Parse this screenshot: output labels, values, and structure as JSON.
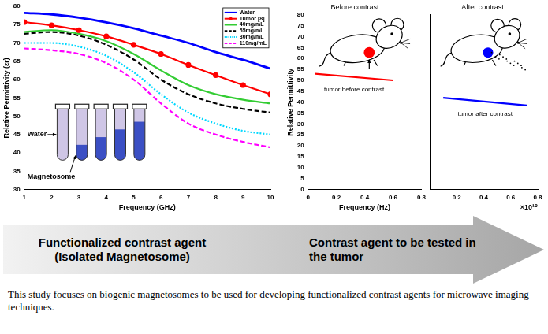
{
  "chart_data": [
    {
      "type": "line",
      "xlabel": "Frequency (GHz)",
      "ylabel": "Relative Permittivity (εr)",
      "x": [
        1,
        2,
        3,
        4,
        5,
        6,
        7,
        8,
        9,
        10
      ],
      "series": [
        {
          "name": "Water",
          "color": "#0000ff",
          "line_style": "solid",
          "values": [
            78.2,
            77.8,
            76.9,
            75.6,
            74,
            72,
            70,
            67.5,
            65.4,
            63
          ]
        },
        {
          "name": "Tumor [8]",
          "color": "#ff0000",
          "line_style": "solid",
          "marker": "circle",
          "values": [
            75.7,
            74.8,
            73.5,
            71.8,
            69.5,
            67,
            64,
            61.2,
            58.5,
            56
          ]
        },
        {
          "name": "40mg/mL",
          "color": "#33cc33",
          "line_style": "solid",
          "values": [
            73,
            73.5,
            72.5,
            70.5,
            67,
            62.5,
            58.5,
            56,
            54.5,
            53.5
          ]
        },
        {
          "name": "55mg/mL",
          "color": "#000000",
          "line_style": "dashed",
          "values": [
            72.5,
            73,
            72,
            69.5,
            65.5,
            60,
            56,
            53.5,
            52,
            51
          ]
        },
        {
          "name": "80mg/mL",
          "color": "#00d8ff",
          "line_style": "dotted",
          "values": [
            70,
            70,
            69,
            66.5,
            62,
            56,
            51,
            48,
            46,
            45
          ]
        },
        {
          "name": "110mg/mL",
          "color": "#ff00ff",
          "line_style": "dashed",
          "values": [
            68.5,
            68,
            67,
            64.5,
            60,
            53.5,
            48,
            45,
            43,
            41.5
          ]
        }
      ],
      "xlim": [
        1,
        10
      ],
      "xticks": [
        1,
        2,
        3,
        4,
        5,
        6,
        7,
        8,
        9,
        10
      ],
      "ylim": [
        30,
        80
      ],
      "yticks": [
        30,
        35,
        40,
        45,
        50,
        55,
        60,
        65,
        70,
        75,
        80
      ],
      "grid": false,
      "legend": "upper right",
      "annotations": [
        "Water",
        "Magnetosome"
      ]
    },
    {
      "type": "line",
      "title": "Before contrast",
      "xlabel": "Frequency (Hz)",
      "ylabel": "Relative Permittivity",
      "x": [
        0.05,
        0.6
      ],
      "series": [
        {
          "color": "#ff0000",
          "line_style": "solid",
          "values": [
            53,
            50
          ]
        }
      ],
      "xlim": [
        0,
        0.8
      ],
      "xticks": [
        0,
        0.2,
        0.4,
        0.6,
        0.8
      ],
      "ylim": [
        0,
        80
      ],
      "yticks": [
        0,
        5,
        10,
        15,
        20,
        25,
        30,
        35,
        40,
        45,
        50,
        55,
        60,
        65,
        70,
        75,
        80
      ],
      "grid": false,
      "annotations": [
        "tumor before contrast"
      ]
    },
    {
      "type": "line",
      "title": "After contrast",
      "x_exponent": "×10¹⁰",
      "x": [
        0.1,
        0.72
      ],
      "series": [
        {
          "color": "#0000ff",
          "line_style": "solid",
          "values": [
            42,
            38.5
          ]
        }
      ],
      "xlim": [
        0,
        0.8
      ],
      "xticks": [
        0.2,
        0.4,
        0.6,
        0.8
      ],
      "ylim": [
        0,
        80
      ],
      "yticks": [
        0,
        5,
        10,
        15,
        20,
        25,
        30,
        35,
        40,
        45,
        50,
        55,
        60,
        65,
        70,
        75,
        80
      ],
      "grid": false,
      "tick_labels": "x",
      "annotations": [
        "tumor after contrast"
      ]
    }
  ],
  "banner": {
    "left": [
      "Functionalized contrast agent",
      "(Isolated Magnetosome)"
    ],
    "right": [
      "Contrast agent to be tested in",
      "the tumor"
    ]
  },
  "caption": "This study focuses on biogenic magnetosomes to be used for developing functionalized contrast agents for microwave imaging techniques."
}
